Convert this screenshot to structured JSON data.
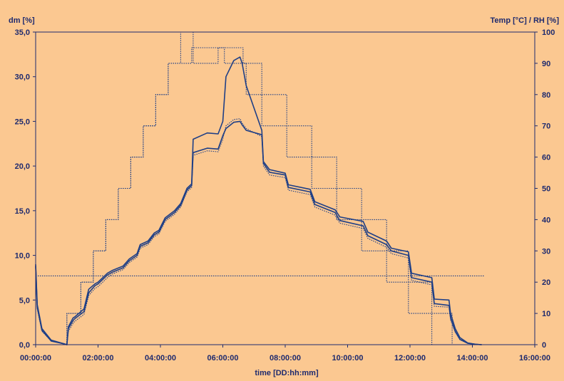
{
  "colors": {
    "background": "#fbc891",
    "ink": "#1e2a6e",
    "series_line": "#1f3f86",
    "grid": "none"
  },
  "chart_data": {
    "type": "line",
    "title": "",
    "xlabel": "time [DD:hh:mm]",
    "ylabel_left": "dm [%]",
    "ylabel_right": "Temp [°C] / RH [%]",
    "x_unit": "hours",
    "xlim": [
      0,
      16
    ],
    "ylim_left": [
      0,
      35
    ],
    "ylim_right": [
      0,
      100
    ],
    "x_tick_labels": [
      "00:00:00",
      "02:00:00",
      "04:00:00",
      "06:00:00",
      "08:00:00",
      "10:00:00",
      "12:00:00",
      "14:00:00",
      "16:00:00"
    ],
    "y_left_tick_labels": [
      "0,0",
      "5,0",
      "10,0",
      "15,0",
      "20,0",
      "25,0",
      "30,0",
      "35,0"
    ],
    "y_right_tick_labels": [
      "0",
      "10",
      "20",
      "30",
      "40",
      "50",
      "60",
      "70",
      "80",
      "90",
      "100"
    ],
    "grid": false,
    "legend": "none",
    "series": [
      {
        "axis": "left",
        "style": "solid",
        "x": [
          0.0,
          0.05,
          0.2,
          0.5,
          0.9,
          1.0,
          1.05,
          1.2,
          1.25,
          1.55,
          1.7,
          1.9,
          2.0,
          2.3,
          2.45,
          2.8,
          3.0,
          3.25,
          3.35,
          3.6,
          3.8,
          3.95,
          4.15,
          4.45,
          4.65,
          4.85,
          5.0,
          5.05,
          5.5,
          5.85,
          6.0,
          6.1,
          6.35,
          6.55,
          6.62,
          6.75,
          7.25,
          7.3,
          7.5,
          8.0,
          8.1,
          8.8,
          8.95,
          9.6,
          9.75,
          10.5,
          10.65,
          11.25,
          11.4,
          11.95,
          12.05,
          12.7,
          12.78,
          13.25,
          13.3,
          13.45,
          13.6,
          13.85,
          14.1,
          14.3
        ],
        "y": [
          9.0,
          4.5,
          1.8,
          0.5,
          0.1,
          0.0,
          2.0,
          3.0,
          3.1,
          4.0,
          6.2,
          6.8,
          7.0,
          8.0,
          8.3,
          8.8,
          9.6,
          10.2,
          11.2,
          11.6,
          12.5,
          12.8,
          14.2,
          15.0,
          15.8,
          17.5,
          18.0,
          23.0,
          23.7,
          23.6,
          25.0,
          30.0,
          31.8,
          32.2,
          31.5,
          29.0,
          24.0,
          20.5,
          19.6,
          19.2,
          17.9,
          17.4,
          16.0,
          15.1,
          14.3,
          13.8,
          12.6,
          11.6,
          10.8,
          10.4,
          8.0,
          7.5,
          5.1,
          5.0,
          3.5,
          1.8,
          0.8,
          0.2,
          0.05,
          0.0
        ]
      },
      {
        "axis": "left",
        "style": "solid",
        "x": [
          0.0,
          0.05,
          0.2,
          0.5,
          0.9,
          1.0,
          1.05,
          1.2,
          1.25,
          1.55,
          1.7,
          1.9,
          2.0,
          2.3,
          2.45,
          2.8,
          3.0,
          3.25,
          3.35,
          3.6,
          3.8,
          3.95,
          4.15,
          4.45,
          4.65,
          4.85,
          5.0,
          5.05,
          5.5,
          5.85,
          6.0,
          6.1,
          6.35,
          6.55,
          6.62,
          6.75,
          7.25,
          7.3,
          7.5,
          8.0,
          8.1,
          8.8,
          8.95,
          9.6,
          9.75,
          10.5,
          10.65,
          11.25,
          11.4,
          11.95,
          12.05,
          12.7,
          12.78,
          13.25,
          13.3,
          13.45,
          13.6,
          13.85,
          14.1,
          14.3
        ],
        "y": [
          8.8,
          4.2,
          1.6,
          0.4,
          0.1,
          0.0,
          1.8,
          2.7,
          2.9,
          3.7,
          5.8,
          6.6,
          6.8,
          7.8,
          8.1,
          8.6,
          9.4,
          10.0,
          11.0,
          11.4,
          12.3,
          12.6,
          14.0,
          14.8,
          15.6,
          17.3,
          17.8,
          21.5,
          22.0,
          21.9,
          23.4,
          24.2,
          24.9,
          25.0,
          24.6,
          24.0,
          23.5,
          20.3,
          19.3,
          19.0,
          17.6,
          17.1,
          15.7,
          14.8,
          13.9,
          13.3,
          12.2,
          11.2,
          10.5,
          10.0,
          7.5,
          7.0,
          4.6,
          4.4,
          3.0,
          1.5,
          0.6,
          0.15,
          0.05,
          0.0
        ]
      },
      {
        "axis": "left",
        "style": "dotted",
        "x": [
          0.0,
          0.05,
          0.2,
          0.5,
          0.9,
          1.0,
          1.05,
          1.2,
          1.25,
          1.55,
          1.7,
          1.9,
          2.0,
          2.3,
          2.45,
          2.8,
          3.0,
          3.25,
          3.35,
          3.6,
          3.8,
          3.95,
          4.15,
          4.45,
          4.65,
          4.85,
          5.0,
          5.05,
          5.5,
          5.85,
          6.0,
          6.1,
          6.35,
          6.55,
          6.62,
          6.75,
          7.25,
          7.3,
          7.5,
          8.0,
          8.1,
          8.8,
          8.95,
          9.6,
          9.75,
          10.5,
          10.65,
          11.25,
          11.4,
          11.95,
          12.05,
          12.7,
          12.78,
          13.25,
          13.3,
          13.45,
          13.6,
          13.85,
          14.1,
          14.3
        ],
        "y": [
          8.6,
          4.0,
          1.5,
          0.4,
          0.1,
          0.0,
          1.5,
          2.4,
          2.6,
          3.4,
          5.5,
          6.3,
          6.5,
          7.5,
          7.9,
          8.4,
          9.2,
          9.8,
          10.8,
          11.2,
          12.1,
          12.4,
          13.8,
          14.6,
          15.4,
          17.1,
          17.6,
          21.2,
          21.7,
          21.6,
          23.0,
          24.5,
          25.2,
          25.3,
          24.8,
          24.2,
          23.3,
          20.0,
          19.0,
          18.7,
          17.3,
          16.8,
          15.4,
          14.5,
          13.6,
          13.0,
          11.9,
          10.9,
          10.2,
          9.7,
          7.2,
          6.7,
          4.3,
          4.2,
          2.8,
          1.4,
          0.55,
          0.15,
          0.05,
          0.0
        ]
      },
      {
        "axis": "right",
        "style": "dotted",
        "x": [
          0.95,
          1.0,
          1.0,
          1.45,
          1.45,
          1.85,
          1.85,
          2.25,
          2.25,
          2.65,
          2.65,
          3.05,
          3.05,
          3.45,
          3.45,
          3.85,
          3.85,
          4.25,
          4.25,
          4.65,
          4.65,
          5.05,
          5.05,
          5.85,
          5.85,
          6.65,
          6.65,
          7.25,
          7.25,
          8.05,
          8.05,
          8.85,
          8.85,
          9.65,
          9.65,
          10.45,
          10.45,
          11.25,
          11.25,
          11.95,
          11.95,
          12.7,
          12.7,
          13.35,
          13.35,
          14.1
        ],
        "y": [
          0,
          0,
          10,
          10,
          20,
          20,
          30,
          30,
          40,
          40,
          50,
          50,
          60,
          60,
          70,
          70,
          80,
          80,
          90,
          90,
          100,
          100,
          90,
          90,
          95,
          95,
          90,
          90,
          80,
          80,
          70,
          70,
          60,
          60,
          50,
          50,
          40,
          40,
          30,
          30,
          20,
          20,
          10,
          10,
          0,
          0
        ]
      },
      {
        "axis": "right",
        "style": "dotted",
        "x": [
          0.95,
          1.0,
          1.0,
          1.45,
          1.45,
          1.85,
          1.85,
          2.25,
          2.25,
          2.65,
          2.65,
          3.05,
          3.05,
          3.45,
          3.45,
          3.85,
          3.85,
          4.25,
          4.25,
          5.0,
          5.0,
          6.05,
          6.05,
          6.75,
          6.75,
          7.25,
          7.25,
          8.05,
          8.05,
          8.85,
          8.85,
          9.65,
          9.65,
          10.45,
          10.45,
          11.25,
          11.25,
          11.95,
          11.95,
          12.7,
          12.7,
          13.35,
          13.35,
          14.1
        ],
        "y": [
          0,
          0,
          10,
          10,
          20,
          20,
          30,
          30,
          40,
          40,
          50,
          50,
          60,
          60,
          70,
          70,
          80,
          80,
          90,
          90,
          95,
          95,
          90,
          90,
          80,
          80,
          70,
          70,
          60,
          60,
          50,
          50,
          40,
          40,
          30,
          30,
          20,
          20,
          10,
          10,
          0,
          0,
          0,
          0
        ]
      },
      {
        "axis": "right",
        "style": "dotted",
        "x": [
          0.0,
          0.05,
          14.4
        ],
        "y": [
          22,
          22,
          22
        ]
      }
    ]
  }
}
